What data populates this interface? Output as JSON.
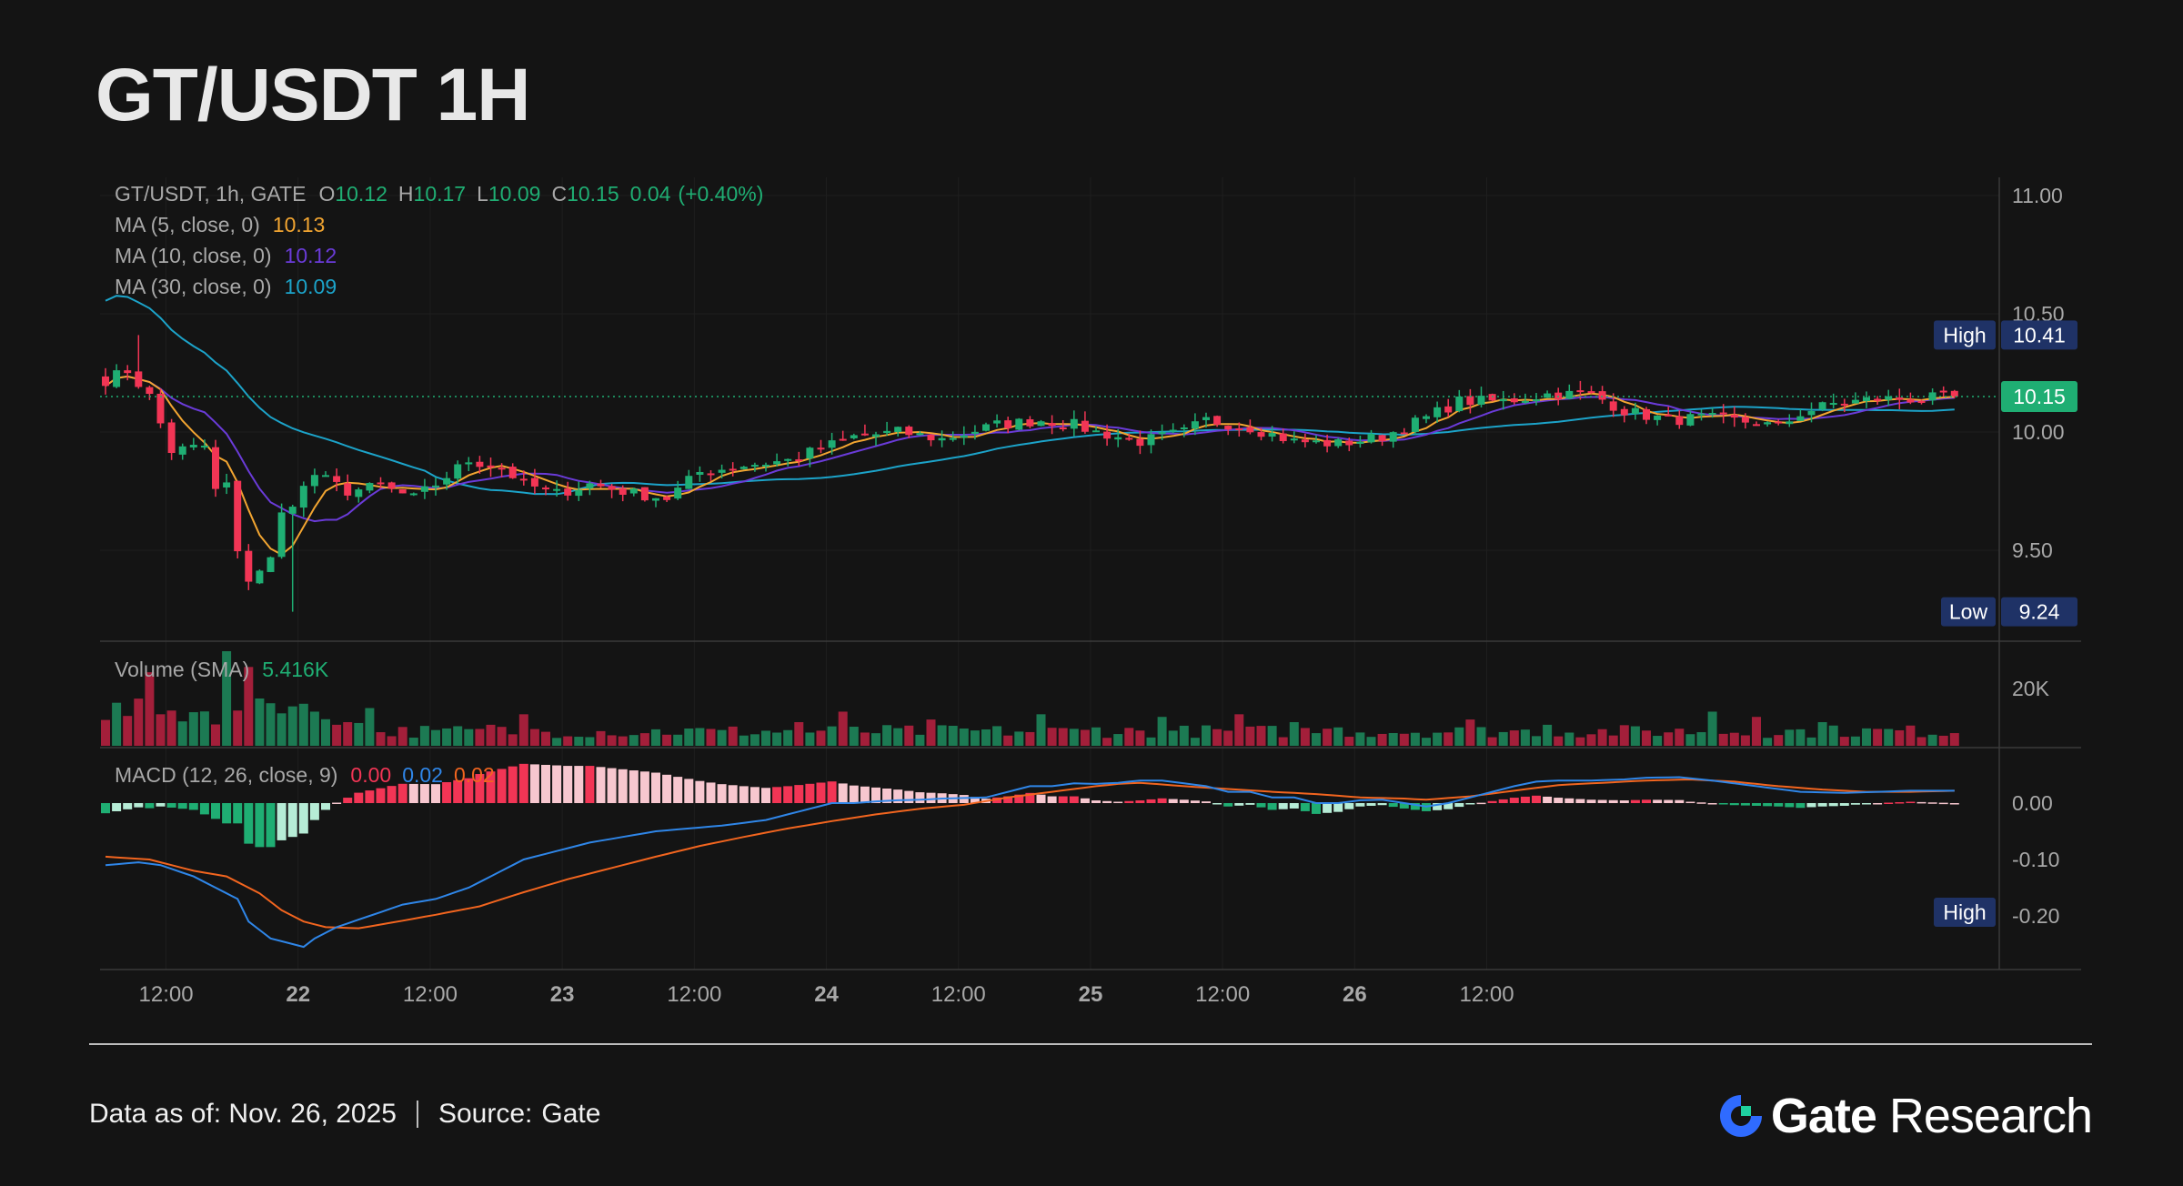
{
  "title": "GT/USDT 1H",
  "footer": {
    "data_as_of": "Data as of: Nov. 26, 2025",
    "source_label": "Source:",
    "source_value": "Gate",
    "brand": "Gate",
    "brand_suffix": "Research"
  },
  "colors": {
    "background": "#141414",
    "up": "#1fae73",
    "down": "#f23555",
    "ma5": "#f2a531",
    "ma10": "#6a3bd8",
    "ma30": "#1ca3c9",
    "macd_line": "#2f86e8",
    "signal_line": "#f2651f",
    "hist_pos": "#f23555",
    "hist_pos_light": "#f7c7cf",
    "hist_neg": "#1fae73",
    "hist_neg_light": "#b6ecd6",
    "tag_bg": "#1f3266",
    "last_price_bg": "#1fae73"
  },
  "chart_data": [
    {
      "type": "candlestick",
      "symbol": "GT/USDT, 1h, GATE",
      "ohlc_header": {
        "o_label": "O",
        "o": "10.12",
        "h_label": "H",
        "h": "10.17",
        "l_label": "L",
        "l": "10.09",
        "c_label": "C",
        "c": "10.15",
        "change": "0.04",
        "change_pct": "(+0.40%)"
      },
      "moving_averages": [
        {
          "label": "MA (5, close, 0)",
          "value": "10.13",
          "color": "#f2a531"
        },
        {
          "label": "MA (10, close, 0)",
          "value": "10.12",
          "color": "#6a3bd8"
        },
        {
          "label": "MA (30, close, 0)",
          "value": "10.09",
          "color": "#1ca3c9"
        }
      ],
      "ylim": [
        9.2,
        11.0
      ],
      "y_ticks": [
        "11.00",
        "10.50",
        "10.00",
        "9.50"
      ],
      "y_tick_values": [
        11.0,
        10.5,
        10.0,
        9.5
      ],
      "high_marker": {
        "label": "High",
        "value": "10.41",
        "price": 10.41
      },
      "low_marker": {
        "label": "Low",
        "value": "9.24",
        "price": 9.24
      },
      "last_price": {
        "value": "10.15",
        "price": 10.15
      },
      "x_time_labels": [
        "12:00",
        "22",
        "12:00",
        "23",
        "12:00",
        "24",
        "12:00",
        "25",
        "12:00",
        "26",
        "12:00"
      ],
      "x_time_hours": [
        12,
        24,
        36,
        48,
        60,
        72,
        84,
        96,
        108,
        120,
        132
      ],
      "start_hour": 6.5,
      "close_anchors": [
        [
          0,
          10.22
        ],
        [
          2,
          10.26
        ],
        [
          4,
          10.15
        ],
        [
          6,
          9.92
        ],
        [
          9,
          9.94
        ],
        [
          10,
          9.75
        ],
        [
          11,
          9.78
        ],
        [
          12,
          9.48
        ],
        [
          13,
          9.38
        ],
        [
          14,
          9.42
        ],
        [
          15,
          9.46
        ],
        [
          16,
          9.65
        ],
        [
          19,
          9.82
        ],
        [
          22,
          9.75
        ],
        [
          25,
          9.77
        ],
        [
          28,
          9.72
        ],
        [
          30,
          9.78
        ],
        [
          33,
          9.88
        ],
        [
          36,
          9.85
        ],
        [
          38,
          9.78
        ],
        [
          41,
          9.74
        ],
        [
          44,
          9.78
        ],
        [
          48,
          9.74
        ],
        [
          51,
          9.72
        ],
        [
          54,
          9.83
        ],
        [
          58,
          9.86
        ],
        [
          62,
          9.88
        ],
        [
          65,
          9.93
        ],
        [
          68,
          9.98
        ],
        [
          72,
          10.0
        ],
        [
          76,
          9.97
        ],
        [
          81,
          10.03
        ],
        [
          85,
          10.05
        ],
        [
          88,
          10.03
        ],
        [
          90,
          10.0
        ],
        [
          94,
          9.96
        ],
        [
          98,
          10.0
        ],
        [
          100,
          10.05
        ],
        [
          104,
          10.02
        ],
        [
          108,
          9.96
        ],
        [
          112,
          9.95
        ],
        [
          116,
          9.98
        ],
        [
          120,
          10.06
        ],
        [
          123,
          10.13
        ],
        [
          127,
          10.13
        ],
        [
          131,
          10.16
        ],
        [
          135,
          10.16
        ],
        [
          138,
          10.09
        ],
        [
          142,
          10.05
        ],
        [
          145,
          10.06
        ],
        [
          150,
          10.04
        ],
        [
          152,
          10.02
        ],
        [
          154,
          10.08
        ],
        [
          157,
          10.12
        ],
        [
          161,
          10.14
        ],
        [
          165,
          10.14
        ],
        [
          168,
          10.15
        ]
      ]
    },
    {
      "type": "bar",
      "name": "Volume (SMA)",
      "label": "Volume (SMA)",
      "value": "5.416K",
      "y_ticks": [
        "20K"
      ],
      "ylim": [
        0,
        36000
      ],
      "spikes": [
        [
          4,
          28
        ],
        [
          5,
          12
        ],
        [
          11,
          36
        ],
        [
          13,
          30
        ],
        [
          14,
          18
        ],
        [
          17,
          15
        ],
        [
          18,
          16
        ],
        [
          19,
          13
        ],
        [
          21,
          8
        ],
        [
          22,
          9
        ],
        [
          30,
          6
        ],
        [
          35,
          8
        ],
        [
          38,
          12
        ],
        [
          46,
          4
        ],
        [
          56,
          6
        ],
        [
          63,
          9
        ],
        [
          67,
          13
        ],
        [
          75,
          10
        ],
        [
          85,
          12
        ],
        [
          90,
          7
        ],
        [
          96,
          11
        ],
        [
          103,
          12
        ],
        [
          108,
          9
        ],
        [
          112,
          7
        ],
        [
          124,
          10
        ],
        [
          131,
          8
        ],
        [
          146,
          13
        ],
        [
          150,
          11
        ],
        [
          156,
          9
        ]
      ]
    },
    {
      "type": "line",
      "name": "MACD (12, 26, close, 9)",
      "label": "MACD (12, 26, close, 9)",
      "values": {
        "histogram": "0.00",
        "macd": "0.02",
        "signal": "0.02"
      },
      "ylim": [
        -0.29,
        0.07
      ],
      "y_ticks": [
        "0.00",
        "-0.10",
        "-0.20"
      ],
      "y_tick_values": [
        0.0,
        -0.1,
        -0.2
      ],
      "high_marker": {
        "label": "High"
      },
      "macd_anchors": [
        [
          0,
          -0.11
        ],
        [
          3,
          -0.105
        ],
        [
          5,
          -0.11
        ],
        [
          8,
          -0.13
        ],
        [
          10,
          -0.15
        ],
        [
          12,
          -0.17
        ],
        [
          13,
          -0.21
        ],
        [
          15,
          -0.24
        ],
        [
          17,
          -0.25
        ],
        [
          18,
          -0.255
        ],
        [
          19,
          -0.24
        ],
        [
          21,
          -0.22
        ],
        [
          24,
          -0.2
        ],
        [
          27,
          -0.18
        ],
        [
          30,
          -0.17
        ],
        [
          33,
          -0.15
        ],
        [
          36,
          -0.12
        ],
        [
          38,
          -0.1
        ],
        [
          41,
          -0.085
        ],
        [
          44,
          -0.07
        ],
        [
          47,
          -0.06
        ],
        [
          50,
          -0.05
        ],
        [
          53,
          -0.045
        ],
        [
          56,
          -0.04
        ],
        [
          58,
          -0.035
        ],
        [
          60,
          -0.03
        ],
        [
          62,
          -0.02
        ],
        [
          64,
          -0.01
        ],
        [
          66,
          0.0
        ],
        [
          68,
          0.0
        ],
        [
          70,
          0.003
        ],
        [
          72,
          0.005
        ],
        [
          74,
          0.006
        ],
        [
          76,
          0.008
        ],
        [
          80,
          0.01
        ],
        [
          84,
          0.03
        ],
        [
          86,
          0.03
        ],
        [
          88,
          0.035
        ],
        [
          90,
          0.034
        ],
        [
          92,
          0.036
        ],
        [
          94,
          0.04
        ],
        [
          96,
          0.04
        ],
        [
          98,
          0.035
        ],
        [
          100,
          0.03
        ],
        [
          102,
          0.02
        ],
        [
          104,
          0.02
        ],
        [
          106,
          0.01
        ],
        [
          108,
          0.01
        ],
        [
          110,
          0.0
        ],
        [
          112,
          0.0
        ],
        [
          114,
          0.005
        ],
        [
          116,
          0.006
        ],
        [
          118,
          0.0
        ],
        [
          120,
          -0.006
        ],
        [
          122,
          0.0
        ],
        [
          124,
          0.01
        ],
        [
          126,
          0.02
        ],
        [
          128,
          0.03
        ],
        [
          130,
          0.038
        ],
        [
          132,
          0.04
        ],
        [
          135,
          0.04
        ],
        [
          138,
          0.042
        ],
        [
          140,
          0.045
        ],
        [
          143,
          0.046
        ],
        [
          146,
          0.04
        ],
        [
          150,
          0.03
        ],
        [
          154,
          0.02
        ],
        [
          158,
          0.018
        ],
        [
          161,
          0.02
        ],
        [
          164,
          0.022
        ],
        [
          168,
          0.022
        ]
      ],
      "signal_anchors": [
        [
          0,
          -0.095
        ],
        [
          4,
          -0.1
        ],
        [
          8,
          -0.12
        ],
        [
          11,
          -0.13
        ],
        [
          14,
          -0.16
        ],
        [
          16,
          -0.19
        ],
        [
          18,
          -0.21
        ],
        [
          20,
          -0.22
        ],
        [
          23,
          -0.222
        ],
        [
          26,
          -0.212
        ],
        [
          30,
          -0.198
        ],
        [
          34,
          -0.183
        ],
        [
          38,
          -0.158
        ],
        [
          42,
          -0.135
        ],
        [
          46,
          -0.115
        ],
        [
          50,
          -0.095
        ],
        [
          54,
          -0.076
        ],
        [
          58,
          -0.06
        ],
        [
          62,
          -0.045
        ],
        [
          66,
          -0.032
        ],
        [
          70,
          -0.02
        ],
        [
          74,
          -0.01
        ],
        [
          78,
          -0.003
        ],
        [
          82,
          0.01
        ],
        [
          86,
          0.02
        ],
        [
          90,
          0.03
        ],
        [
          92,
          0.034
        ],
        [
          94,
          0.036
        ],
        [
          98,
          0.03
        ],
        [
          102,
          0.025
        ],
        [
          106,
          0.02
        ],
        [
          110,
          0.016
        ],
        [
          114,
          0.01
        ],
        [
          118,
          0.008
        ],
        [
          120,
          0.006
        ],
        [
          124,
          0.012
        ],
        [
          128,
          0.022
        ],
        [
          132,
          0.032
        ],
        [
          136,
          0.036
        ],
        [
          140,
          0.04
        ],
        [
          144,
          0.042
        ],
        [
          148,
          0.038
        ],
        [
          152,
          0.03
        ],
        [
          156,
          0.024
        ],
        [
          160,
          0.02
        ],
        [
          164,
          0.02
        ],
        [
          168,
          0.022
        ]
      ]
    }
  ]
}
